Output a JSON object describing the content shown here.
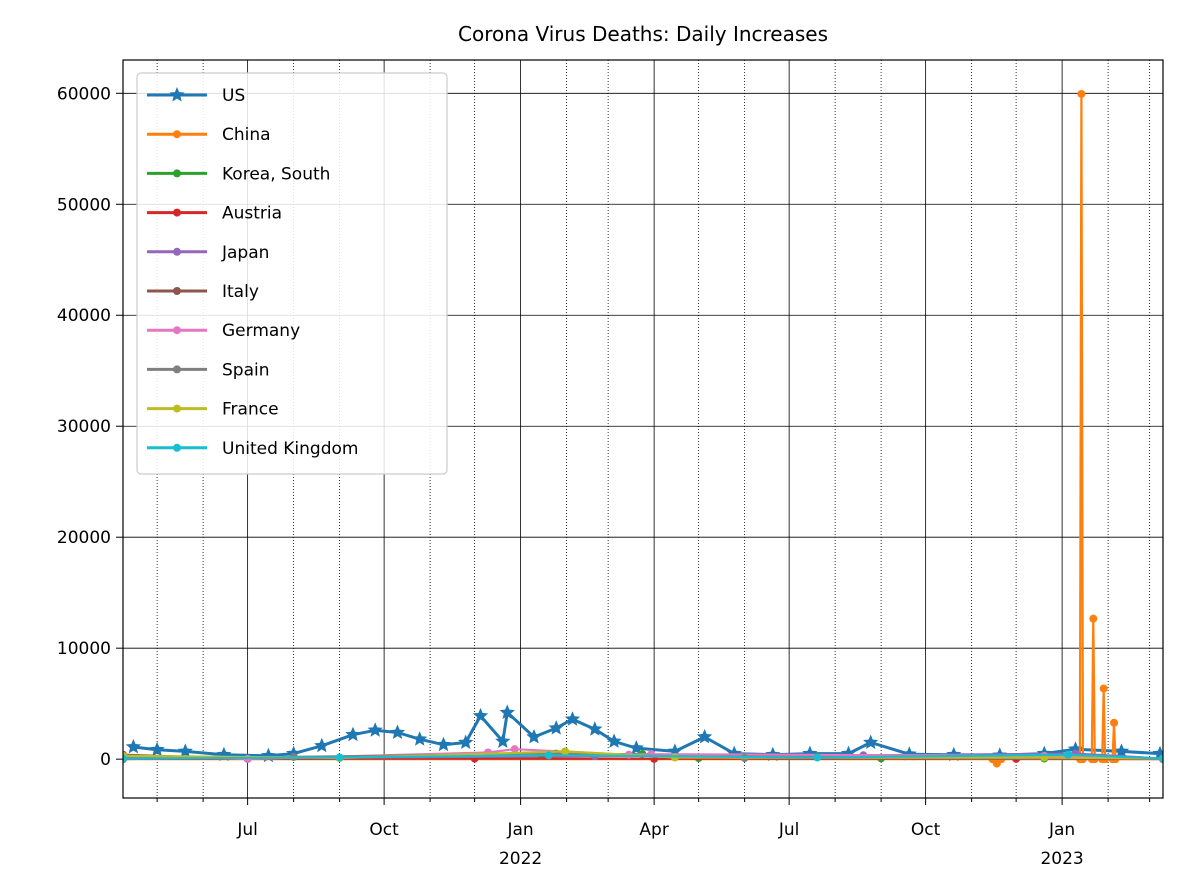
{
  "chart_data": {
    "type": "line",
    "title": "Corona Virus Deaths: Daily Increases",
    "xlabel": "",
    "ylabel": "",
    "x_range": [
      "2021-04-08",
      "2023-03-10"
    ],
    "ylim": [
      -3500,
      63000
    ],
    "y_ticks": [
      0,
      10000,
      20000,
      30000,
      40000,
      50000,
      60000
    ],
    "x_ticks": [
      {
        "date": "2021-07-01",
        "label": "Jul",
        "sublabel": ""
      },
      {
        "date": "2021-10-01",
        "label": "Oct",
        "sublabel": ""
      },
      {
        "date": "2022-01-01",
        "label": "Jan",
        "sublabel": "2022"
      },
      {
        "date": "2022-04-01",
        "label": "Apr",
        "sublabel": ""
      },
      {
        "date": "2022-07-01",
        "label": "Jul",
        "sublabel": ""
      },
      {
        "date": "2022-10-01",
        "label": "Oct",
        "sublabel": ""
      },
      {
        "date": "2023-01-01",
        "label": "Jan",
        "sublabel": "2023"
      }
    ],
    "grid": "major solid, minor dotted",
    "legend_position": "upper-left",
    "series": [
      {
        "name": "US",
        "color": "#1f77b4",
        "marker": "star",
        "points": [
          [
            "2021-04-15",
            1100
          ],
          [
            "2021-05-01",
            850
          ],
          [
            "2021-05-20",
            700
          ],
          [
            "2021-06-15",
            400
          ],
          [
            "2021-07-15",
            300
          ],
          [
            "2021-08-01",
            500
          ],
          [
            "2021-08-20",
            1200
          ],
          [
            "2021-09-10",
            2200
          ],
          [
            "2021-09-25",
            2600
          ],
          [
            "2021-10-10",
            2400
          ],
          [
            "2021-10-25",
            1800
          ],
          [
            "2021-11-10",
            1300
          ],
          [
            "2021-11-25",
            1500
          ],
          [
            "2021-12-05",
            3900
          ],
          [
            "2021-12-20",
            1600
          ],
          [
            "2021-12-23",
            4200
          ],
          [
            "2022-01-10",
            2000
          ],
          [
            "2022-01-25",
            2800
          ],
          [
            "2022-02-05",
            3600
          ],
          [
            "2022-02-20",
            2700
          ],
          [
            "2022-03-05",
            1600
          ],
          [
            "2022-03-20",
            1000
          ],
          [
            "2022-04-15",
            700
          ],
          [
            "2022-05-05",
            2000
          ],
          [
            "2022-05-25",
            500
          ],
          [
            "2022-06-20",
            400
          ],
          [
            "2022-07-15",
            500
          ],
          [
            "2022-08-10",
            500
          ],
          [
            "2022-08-25",
            1500
          ],
          [
            "2022-09-20",
            450
          ],
          [
            "2022-10-20",
            400
          ],
          [
            "2022-11-20",
            350
          ],
          [
            "2022-12-20",
            500
          ],
          [
            "2023-01-10",
            900
          ],
          [
            "2023-02-10",
            700
          ],
          [
            "2023-03-08",
            500
          ]
        ]
      },
      {
        "name": "China",
        "color": "#ff7f0e",
        "marker": "dot",
        "points": [
          [
            "2021-04-08",
            0
          ],
          [
            "2022-11-15",
            0
          ],
          [
            "2022-11-18",
            -400
          ],
          [
            "2022-11-21",
            0
          ],
          [
            "2023-01-13",
            0
          ],
          [
            "2023-01-14",
            59938
          ],
          [
            "2023-01-15",
            0
          ],
          [
            "2023-01-21",
            0
          ],
          [
            "2023-01-22",
            12658
          ],
          [
            "2023-01-23",
            0
          ],
          [
            "2023-01-28",
            0
          ],
          [
            "2023-01-29",
            6364
          ],
          [
            "2023-01-30",
            0
          ],
          [
            "2023-02-04",
            0
          ],
          [
            "2023-02-05",
            3278
          ],
          [
            "2023-02-06",
            0
          ],
          [
            "2023-03-10",
            0
          ]
        ]
      },
      {
        "name": "Korea, South",
        "color": "#2ca02c",
        "marker": "dot",
        "points": [
          [
            "2021-04-08",
            5
          ],
          [
            "2022-03-24",
            470
          ],
          [
            "2022-05-01",
            100
          ],
          [
            "2022-09-01",
            80
          ],
          [
            "2022-12-20",
            60
          ],
          [
            "2023-03-10",
            20
          ]
        ]
      },
      {
        "name": "Austria",
        "color": "#d62728",
        "marker": "dot",
        "points": [
          [
            "2021-04-08",
            30
          ],
          [
            "2021-12-01",
            50
          ],
          [
            "2022-04-01",
            30
          ],
          [
            "2022-12-01",
            30
          ],
          [
            "2023-03-10",
            10
          ]
        ]
      },
      {
        "name": "Japan",
        "color": "#9467bd",
        "marker": "dot",
        "points": [
          [
            "2021-04-08",
            20
          ],
          [
            "2022-02-20",
            270
          ],
          [
            "2022-08-20",
            350
          ],
          [
            "2023-01-10",
            500
          ],
          [
            "2023-03-10",
            50
          ]
        ]
      },
      {
        "name": "Italy",
        "color": "#8c564b",
        "marker": "dot",
        "points": [
          [
            "2021-04-08",
            400
          ],
          [
            "2021-07-01",
            30
          ],
          [
            "2022-01-15",
            400
          ],
          [
            "2022-07-20",
            200
          ],
          [
            "2022-12-20",
            200
          ],
          [
            "2023-03-10",
            50
          ]
        ]
      },
      {
        "name": "Germany",
        "color": "#e377c2",
        "marker": "dot",
        "points": [
          [
            "2021-04-08",
            300
          ],
          [
            "2021-07-01",
            20
          ],
          [
            "2021-12-10",
            600
          ],
          [
            "2021-12-28",
            900
          ],
          [
            "2022-03-15",
            400
          ],
          [
            "2022-03-30",
            450
          ],
          [
            "2022-12-20",
            300
          ],
          [
            "2023-03-10",
            50
          ]
        ]
      },
      {
        "name": "Spain",
        "color": "#7f7f7f",
        "marker": "dot",
        "points": [
          [
            "2021-04-08",
            100
          ],
          [
            "2021-08-01",
            200
          ],
          [
            "2022-01-25",
            500
          ],
          [
            "2022-06-01",
            100
          ],
          [
            "2023-03-10",
            50
          ]
        ]
      },
      {
        "name": "France",
        "color": "#bcbd22",
        "marker": "dot",
        "points": [
          [
            "2021-04-08",
            300
          ],
          [
            "2021-09-01",
            100
          ],
          [
            "2022-01-31",
            700
          ],
          [
            "2022-04-15",
            150
          ],
          [
            "2022-12-20",
            150
          ],
          [
            "2023-03-10",
            50
          ]
        ]
      },
      {
        "name": "United Kingdom",
        "color": "#17becf",
        "marker": "dot",
        "points": [
          [
            "2021-04-08",
            50
          ],
          [
            "2021-09-01",
            150
          ],
          [
            "2022-01-20",
            350
          ],
          [
            "2022-07-20",
            150
          ],
          [
            "2023-01-05",
            400
          ],
          [
            "2023-03-10",
            50
          ]
        ]
      }
    ]
  }
}
